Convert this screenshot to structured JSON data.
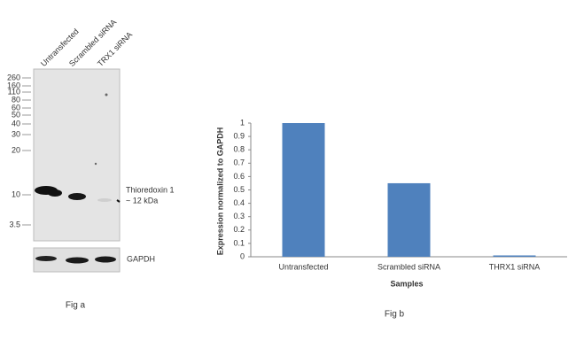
{
  "figure_a": {
    "lane_labels": [
      "Untransfected",
      "Scrambled siRNA",
      "TRX1 siRNA"
    ],
    "markers": [
      260,
      160,
      110,
      80,
      60,
      50,
      40,
      30,
      20,
      10,
      3.5
    ],
    "band_label": "Thioredoxin 1",
    "band_size": "~ 12 kDa",
    "loading_label": "GAPDH",
    "caption": "Fig a"
  },
  "chart_data": {
    "type": "bar",
    "categories": [
      "Untransfected",
      "Scrambled siRNA",
      "THRX1 siRNA"
    ],
    "values": [
      1,
      0.55,
      0.01
    ],
    "color": "#4f81bd",
    "ylim": [
      0,
      1
    ],
    "yticks": [
      0,
      0.1,
      0.2,
      0.3,
      0.4,
      0.5,
      0.6,
      0.7,
      0.8,
      0.9,
      1
    ],
    "xlabel": "Samples",
    "ylabel": "Expression  normalized to GAPDH",
    "caption": "Fig b"
  }
}
